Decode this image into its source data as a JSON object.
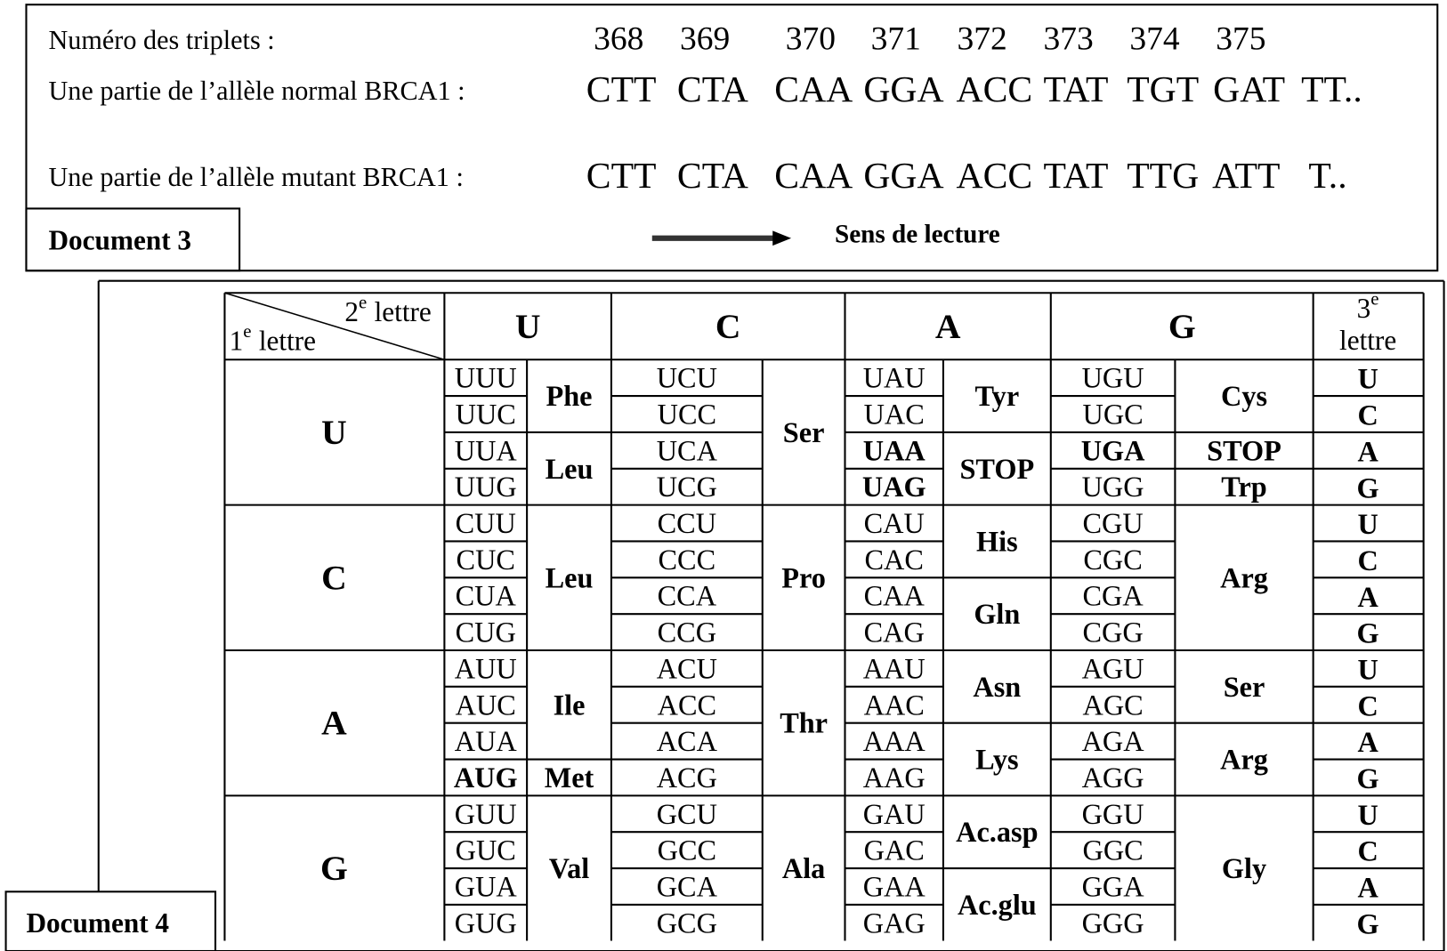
{
  "doc3": {
    "triplet_label": "Numéro des triplets :",
    "triplet_numbers": [
      368,
      369,
      370,
      371,
      372,
      373,
      374,
      375
    ],
    "normal_label": "Une partie de l’allèle normal BRCA1 :",
    "normal_codons": [
      "CTT",
      "CTA",
      "CAA",
      "GGA",
      "ACC",
      "TAT",
      "TGT",
      "GAT",
      "TT.."
    ],
    "mutant_label": "Une partie de l’allèle mutant BRCA1 :",
    "mutant_codons": [
      "CTT",
      "CTA",
      "CAA",
      "GGA",
      "ACC",
      "TAT",
      "TTG",
      "ATT",
      "T.."
    ],
    "title": "Document 3",
    "reading_direction": "Sens de lecture"
  },
  "doc4": {
    "title": "Document 4",
    "corner_second": {
      "number": "2",
      "sup": "e",
      "text": "lettre"
    },
    "corner_first": {
      "number": "1",
      "sup": "e",
      "text": "lettre"
    },
    "corner_third": {
      "number": "3",
      "sup": "e",
      "text": "lettre"
    },
    "second_letters": [
      "U",
      "C",
      "A",
      "G"
    ],
    "blocks": [
      {
        "first": "U",
        "third": [
          "U",
          "C",
          "A",
          "G"
        ],
        "columns": [
          {
            "groups": [
              {
                "name": "Phe",
                "codons": [
                  "UUU",
                  "UUC"
                ]
              },
              {
                "name": "Leu",
                "codons": [
                  "UUA",
                  "UUG"
                ]
              }
            ]
          },
          {
            "groups": [
              {
                "name": "Ser",
                "codons": [
                  "UCU",
                  "UCC",
                  "UCA",
                  "UCG"
                ]
              }
            ]
          },
          {
            "groups": [
              {
                "name": "Tyr",
                "codons": [
                  "UAU",
                  "UAC"
                ]
              },
              {
                "name": "STOP",
                "codons": [
                  "UAA",
                  "UAG"
                ],
                "bold_codons": true
              }
            ]
          },
          {
            "groups": [
              {
                "name": "Cys",
                "codons": [
                  "UGU",
                  "UGC"
                ]
              },
              {
                "name": "STOP",
                "codons": [
                  "UGA"
                ],
                "bold_codons": true
              },
              {
                "name": "Trp",
                "codons": [
                  "UGG"
                ]
              }
            ]
          }
        ]
      },
      {
        "first": "C",
        "third": [
          "U",
          "C",
          "A",
          "G"
        ],
        "columns": [
          {
            "groups": [
              {
                "name": "Leu",
                "codons": [
                  "CUU",
                  "CUC",
                  "CUA",
                  "CUG"
                ]
              }
            ]
          },
          {
            "groups": [
              {
                "name": "Pro",
                "codons": [
                  "CCU",
                  "CCC",
                  "CCA",
                  "CCG"
                ]
              }
            ]
          },
          {
            "groups": [
              {
                "name": "His",
                "codons": [
                  "CAU",
                  "CAC"
                ]
              },
              {
                "name": "Gln",
                "codons": [
                  "CAA",
                  "CAG"
                ]
              }
            ]
          },
          {
            "groups": [
              {
                "name": "Arg",
                "codons": [
                  "CGU",
                  "CGC",
                  "CGA",
                  "CGG"
                ]
              }
            ]
          }
        ]
      },
      {
        "first": "A",
        "third": [
          "U",
          "C",
          "A",
          "G"
        ],
        "columns": [
          {
            "groups": [
              {
                "name": "Ile",
                "codons": [
                  "AUU",
                  "AUC",
                  "AUA"
                ]
              },
              {
                "name": "Met",
                "codons": [
                  "AUG"
                ],
                "bold_codons": true
              }
            ]
          },
          {
            "groups": [
              {
                "name": "Thr",
                "codons": [
                  "ACU",
                  "ACC",
                  "ACA",
                  "ACG"
                ]
              }
            ]
          },
          {
            "groups": [
              {
                "name": "Asn",
                "codons": [
                  "AAU",
                  "AAC"
                ]
              },
              {
                "name": "Lys",
                "codons": [
                  "AAA",
                  "AAG"
                ]
              }
            ]
          },
          {
            "groups": [
              {
                "name": "Ser",
                "codons": [
                  "AGU",
                  "AGC"
                ]
              },
              {
                "name": "Arg",
                "codons": [
                  "AGA",
                  "AGG"
                ]
              }
            ]
          }
        ]
      },
      {
        "first": "G",
        "third": [
          "U",
          "C",
          "A",
          "G"
        ],
        "columns": [
          {
            "groups": [
              {
                "name": "Val",
                "codons": [
                  "GUU",
                  "GUC",
                  "GUA",
                  "GUG"
                ]
              }
            ]
          },
          {
            "groups": [
              {
                "name": "Ala",
                "codons": [
                  "GCU",
                  "GCC",
                  "GCA",
                  "GCG"
                ]
              }
            ]
          },
          {
            "groups": [
              {
                "name": "Ac.asp",
                "codons": [
                  "GAU",
                  "GAC"
                ]
              },
              {
                "name": "Ac.glu",
                "codons": [
                  "GAA",
                  "GAG"
                ]
              }
            ]
          },
          {
            "groups": [
              {
                "name": "Gly",
                "codons": [
                  "GGU",
                  "GGC",
                  "GGA",
                  "GGG"
                ]
              }
            ]
          }
        ]
      }
    ]
  }
}
